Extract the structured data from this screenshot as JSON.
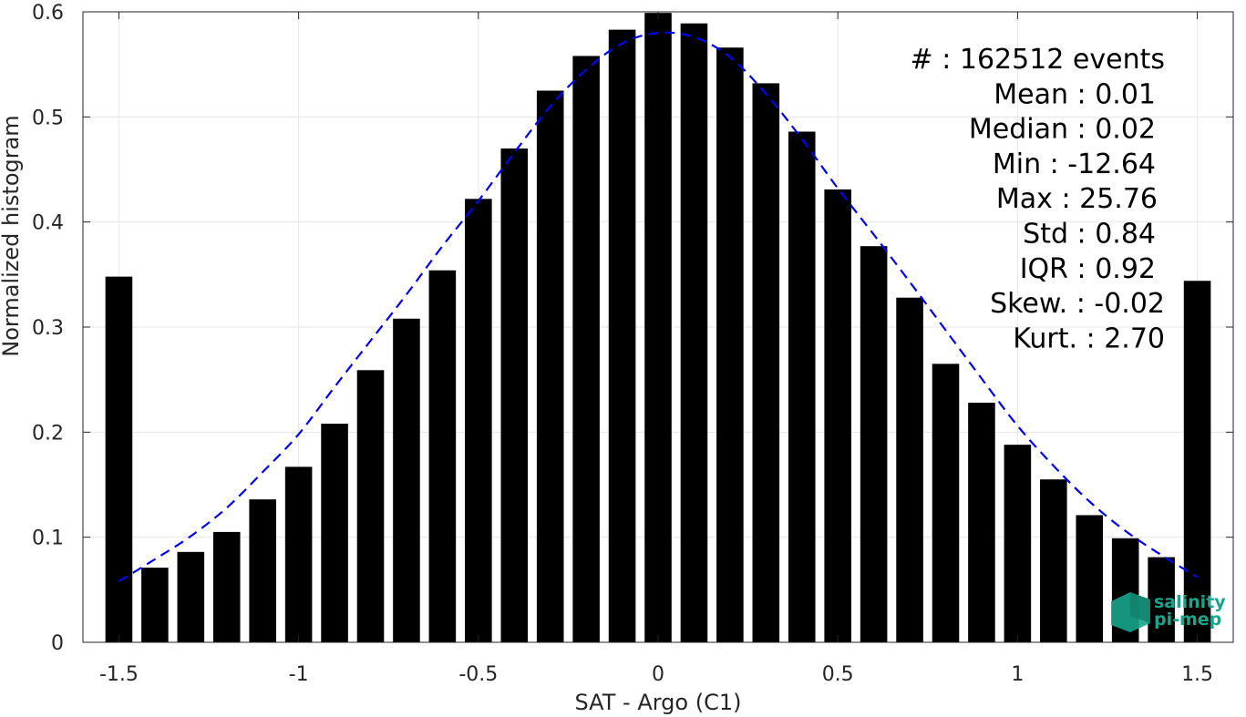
{
  "chart_data": {
    "type": "bar",
    "xlabel": "SAT - Argo (C1)",
    "ylabel": "Normalized histogram",
    "xlim": [
      -1.6,
      1.6
    ],
    "ylim": [
      0,
      0.6
    ],
    "xticks": [
      -1.5,
      -1,
      -0.5,
      0,
      0.5,
      1,
      1.5
    ],
    "xtick_labels": [
      "-1.5",
      "-1",
      "-0.5",
      "0",
      "0.5",
      "1",
      "1.5"
    ],
    "yticks": [
      0,
      0.1,
      0.2,
      0.3,
      0.4,
      0.5,
      0.6
    ],
    "ytick_labels": [
      "0",
      "0.1",
      "0.2",
      "0.3",
      "0.4",
      "0.5",
      "0.6"
    ],
    "grid": true,
    "bar_color": "#000000",
    "bar_width": 0.075,
    "x": [
      -1.5,
      -1.4,
      -1.3,
      -1.2,
      -1.1,
      -1.0,
      -0.9,
      -0.8,
      -0.7,
      -0.6,
      -0.5,
      -0.4,
      -0.3,
      -0.2,
      -0.1,
      0.0,
      0.1,
      0.2,
      0.3,
      0.4,
      0.5,
      0.6,
      0.7,
      0.8,
      0.9,
      1.0,
      1.1,
      1.2,
      1.3,
      1.4,
      1.5
    ],
    "values": [
      0.348,
      0.071,
      0.086,
      0.105,
      0.136,
      0.167,
      0.208,
      0.259,
      0.308,
      0.354,
      0.422,
      0.47,
      0.525,
      0.558,
      0.583,
      0.599,
      0.589,
      0.566,
      0.532,
      0.486,
      0.431,
      0.377,
      0.328,
      0.265,
      0.228,
      0.188,
      0.155,
      0.121,
      0.099,
      0.081,
      0.344
    ],
    "fit": {
      "type": "gaussian",
      "color": "#0000ff",
      "style": "dashed",
      "x": [
        -1.5,
        -1.4,
        -1.3,
        -1.2,
        -1.1,
        -1.0,
        -0.9,
        -0.8,
        -0.7,
        -0.6,
        -0.5,
        -0.4,
        -0.3,
        -0.2,
        -0.1,
        0.0,
        0.1,
        0.2,
        0.3,
        0.4,
        0.5,
        0.6,
        0.7,
        0.8,
        0.9,
        1.0,
        1.1,
        1.2,
        1.3,
        1.4,
        1.5
      ],
      "values": [
        0.058,
        0.079,
        0.101,
        0.128,
        0.162,
        0.198,
        0.243,
        0.287,
        0.331,
        0.377,
        0.42,
        0.466,
        0.51,
        0.545,
        0.57,
        0.58,
        0.576,
        0.557,
        0.522,
        0.479,
        0.432,
        0.388,
        0.343,
        0.297,
        0.251,
        0.206,
        0.168,
        0.134,
        0.106,
        0.083,
        0.062
      ]
    }
  },
  "stats": [
    {
      "label": "#  :",
      "value": "162512 events"
    },
    {
      "label": "Mean :",
      "value": "0.01"
    },
    {
      "label": "Median :",
      "value": "0.02"
    },
    {
      "label": "Min :",
      "value": "-12.64"
    },
    {
      "label": "Max :",
      "value": "25.76"
    },
    {
      "label": "Std :",
      "value": "0.84"
    },
    {
      "label": "IQR :",
      "value": "0.92"
    },
    {
      "label": "Skew. :",
      "value": "-0.02"
    },
    {
      "label": "Kurt. :",
      "value": "2.70"
    }
  ],
  "logo": {
    "line1": "salinity",
    "line2": "pi-mep",
    "color": "#17a58c"
  }
}
